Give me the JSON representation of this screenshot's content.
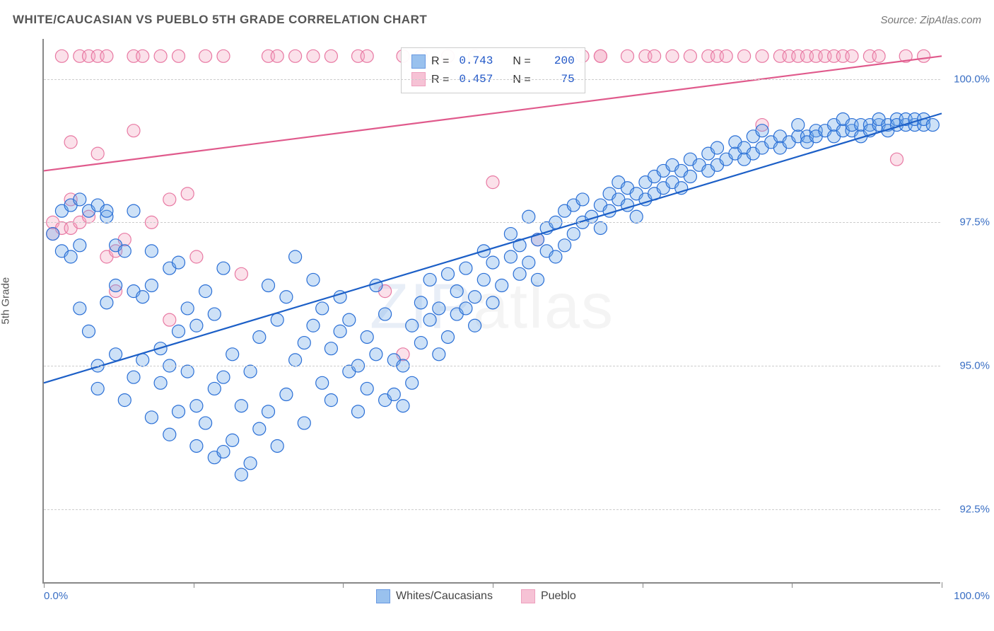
{
  "title": "WHITE/CAUCASIAN VS PUEBLO 5TH GRADE CORRELATION CHART",
  "source": "Source: ZipAtlas.com",
  "ylabel": "5th Grade",
  "watermark_a": "ZIP",
  "watermark_b": "atlas",
  "chart": {
    "type": "scatter",
    "background_color": "#ffffff",
    "grid_color": "#cccccc",
    "axis_color": "#888888",
    "xlim": [
      0,
      100
    ],
    "ylim": [
      91.2,
      100.7
    ],
    "ytick_values": [
      92.5,
      95.0,
      97.5,
      100.0
    ],
    "ytick_labels": [
      "92.5%",
      "95.0%",
      "97.5%",
      "100.0%"
    ],
    "xtick_values": [
      0,
      16.67,
      33.33,
      50,
      66.67,
      83.33,
      100
    ],
    "xtick_label_left": "0.0%",
    "xtick_label_right": "100.0%",
    "marker_radius": 9,
    "marker_stroke_width": 1.2,
    "marker_fill_opacity": 0.35,
    "trend_line_width": 2.2,
    "series": {
      "blue": {
        "label": "Whites/Caucasians",
        "stroke_color": "#2a6fd6",
        "fill_color": "#6fa8e8",
        "line_color": "#1c5fc7",
        "R": "0.743",
        "N": "200",
        "trend_x1": 0,
        "trend_y1": 94.7,
        "trend_x2": 100,
        "trend_y2": 99.4,
        "points": [
          [
            1,
            97.3
          ],
          [
            2,
            97.0
          ],
          [
            2,
            97.7
          ],
          [
            3,
            97.8
          ],
          [
            3,
            96.9
          ],
          [
            4,
            96.0
          ],
          [
            4,
            97.1
          ],
          [
            4,
            97.9
          ],
          [
            5,
            97.7
          ],
          [
            5,
            95.6
          ],
          [
            6,
            97.8
          ],
          [
            6,
            95.0
          ],
          [
            6,
            94.6
          ],
          [
            7,
            97.6
          ],
          [
            7,
            97.7
          ],
          [
            7,
            96.1
          ],
          [
            8,
            96.4
          ],
          [
            8,
            95.2
          ],
          [
            8,
            97.1
          ],
          [
            9,
            94.4
          ],
          [
            9,
            97.0
          ],
          [
            10,
            96.3
          ],
          [
            10,
            94.8
          ],
          [
            10,
            97.7
          ],
          [
            11,
            95.1
          ],
          [
            11,
            96.2
          ],
          [
            12,
            96.4
          ],
          [
            12,
            94.1
          ],
          [
            12,
            97.0
          ],
          [
            13,
            94.7
          ],
          [
            13,
            95.3
          ],
          [
            14,
            95.0
          ],
          [
            14,
            96.7
          ],
          [
            14,
            93.8
          ],
          [
            15,
            95.6
          ],
          [
            15,
            94.2
          ],
          [
            15,
            96.8
          ],
          [
            16,
            94.9
          ],
          [
            16,
            96.0
          ],
          [
            17,
            94.3
          ],
          [
            17,
            95.7
          ],
          [
            17,
            93.6
          ],
          [
            18,
            96.3
          ],
          [
            18,
            94.0
          ],
          [
            19,
            95.9
          ],
          [
            19,
            94.6
          ],
          [
            19,
            93.4
          ],
          [
            20,
            96.7
          ],
          [
            20,
            93.5
          ],
          [
            20,
            94.8
          ],
          [
            21,
            93.7
          ],
          [
            21,
            95.2
          ],
          [
            22,
            94.3
          ],
          [
            22,
            93.1
          ],
          [
            23,
            93.3
          ],
          [
            23,
            94.9
          ],
          [
            24,
            95.5
          ],
          [
            24,
            93.9
          ],
          [
            25,
            94.2
          ],
          [
            25,
            96.4
          ],
          [
            26,
            95.8
          ],
          [
            26,
            93.6
          ],
          [
            27,
            96.2
          ],
          [
            27,
            94.5
          ],
          [
            28,
            96.9
          ],
          [
            28,
            95.1
          ],
          [
            29,
            94.0
          ],
          [
            29,
            95.4
          ],
          [
            30,
            95.7
          ],
          [
            30,
            96.5
          ],
          [
            31,
            94.7
          ],
          [
            31,
            96.0
          ],
          [
            32,
            95.3
          ],
          [
            32,
            94.4
          ],
          [
            33,
            95.6
          ],
          [
            33,
            96.2
          ],
          [
            34,
            94.9
          ],
          [
            34,
            95.8
          ],
          [
            35,
            94.2
          ],
          [
            35,
            95.0
          ],
          [
            36,
            95.5
          ],
          [
            36,
            94.6
          ],
          [
            37,
            96.4
          ],
          [
            37,
            95.2
          ],
          [
            38,
            94.4
          ],
          [
            38,
            95.9
          ],
          [
            39,
            95.1
          ],
          [
            39,
            94.5
          ],
          [
            40,
            94.3
          ],
          [
            40,
            95.0
          ],
          [
            41,
            95.7
          ],
          [
            41,
            94.7
          ],
          [
            42,
            96.1
          ],
          [
            42,
            95.4
          ],
          [
            43,
            96.5
          ],
          [
            43,
            95.8
          ],
          [
            44,
            95.2
          ],
          [
            44,
            96.0
          ],
          [
            45,
            96.6
          ],
          [
            45,
            95.5
          ],
          [
            46,
            96.3
          ],
          [
            46,
            95.9
          ],
          [
            47,
            96.0
          ],
          [
            47,
            96.7
          ],
          [
            48,
            96.2
          ],
          [
            48,
            95.7
          ],
          [
            49,
            96.5
          ],
          [
            49,
            97.0
          ],
          [
            50,
            96.1
          ],
          [
            50,
            96.8
          ],
          [
            51,
            96.4
          ],
          [
            52,
            96.9
          ],
          [
            52,
            97.3
          ],
          [
            53,
            96.6
          ],
          [
            53,
            97.1
          ],
          [
            54,
            96.8
          ],
          [
            54,
            97.6
          ],
          [
            55,
            97.2
          ],
          [
            55,
            96.5
          ],
          [
            56,
            97.0
          ],
          [
            56,
            97.4
          ],
          [
            57,
            96.9
          ],
          [
            57,
            97.5
          ],
          [
            58,
            97.1
          ],
          [
            58,
            97.7
          ],
          [
            59,
            97.8
          ],
          [
            59,
            97.3
          ],
          [
            60,
            97.5
          ],
          [
            60,
            97.9
          ],
          [
            61,
            97.6
          ],
          [
            62,
            97.4
          ],
          [
            62,
            97.8
          ],
          [
            63,
            97.7
          ],
          [
            63,
            98.0
          ],
          [
            64,
            97.9
          ],
          [
            64,
            98.2
          ],
          [
            65,
            97.8
          ],
          [
            65,
            98.1
          ],
          [
            66,
            97.6
          ],
          [
            66,
            98.0
          ],
          [
            67,
            98.2
          ],
          [
            67,
            97.9
          ],
          [
            68,
            98.3
          ],
          [
            68,
            98.0
          ],
          [
            69,
            98.1
          ],
          [
            69,
            98.4
          ],
          [
            70,
            98.2
          ],
          [
            70,
            98.5
          ],
          [
            71,
            98.4
          ],
          [
            71,
            98.1
          ],
          [
            72,
            98.3
          ],
          [
            72,
            98.6
          ],
          [
            73,
            98.5
          ],
          [
            74,
            98.4
          ],
          [
            74,
            98.7
          ],
          [
            75,
            98.5
          ],
          [
            75,
            98.8
          ],
          [
            76,
            98.6
          ],
          [
            77,
            98.7
          ],
          [
            77,
            98.9
          ],
          [
            78,
            98.8
          ],
          [
            78,
            98.6
          ],
          [
            79,
            98.7
          ],
          [
            79,
            99.0
          ],
          [
            80,
            98.8
          ],
          [
            80,
            99.1
          ],
          [
            81,
            98.9
          ],
          [
            82,
            99.0
          ],
          [
            82,
            98.8
          ],
          [
            83,
            98.9
          ],
          [
            84,
            99.0
          ],
          [
            84,
            99.2
          ],
          [
            85,
            99.0
          ],
          [
            85,
            98.9
          ],
          [
            86,
            99.1
          ],
          [
            86,
            99.0
          ],
          [
            87,
            99.1
          ],
          [
            88,
            99.2
          ],
          [
            88,
            99.0
          ],
          [
            89,
            99.1
          ],
          [
            89,
            99.3
          ],
          [
            90,
            99.1
          ],
          [
            90,
            99.2
          ],
          [
            91,
            99.2
          ],
          [
            91,
            99.0
          ],
          [
            92,
            99.2
          ],
          [
            92,
            99.1
          ],
          [
            93,
            99.2
          ],
          [
            93,
            99.3
          ],
          [
            94,
            99.2
          ],
          [
            94,
            99.1
          ],
          [
            95,
            99.3
          ],
          [
            95,
            99.2
          ],
          [
            96,
            99.2
          ],
          [
            96,
            99.3
          ],
          [
            97,
            99.2
          ],
          [
            97,
            99.3
          ],
          [
            98,
            99.2
          ],
          [
            98,
            99.3
          ],
          [
            99,
            99.2
          ]
        ]
      },
      "pink": {
        "label": "Pueblo",
        "stroke_color": "#e879a3",
        "fill_color": "#f3a9c4",
        "line_color": "#e05a8c",
        "R": "0.457",
        "N": "75",
        "trend_x1": 0,
        "trend_y1": 98.4,
        "trend_x2": 100,
        "trend_y2": 100.4,
        "points": [
          [
            1,
            97.3
          ],
          [
            1,
            97.5
          ],
          [
            2,
            97.4
          ],
          [
            2,
            100.4
          ],
          [
            3,
            98.9
          ],
          [
            3,
            97.4
          ],
          [
            3,
            97.9
          ],
          [
            4,
            100.4
          ],
          [
            4,
            97.5
          ],
          [
            5,
            100.4
          ],
          [
            5,
            97.6
          ],
          [
            6,
            100.4
          ],
          [
            6,
            98.7
          ],
          [
            7,
            96.9
          ],
          [
            7,
            100.4
          ],
          [
            8,
            96.3
          ],
          [
            8,
            97.0
          ],
          [
            9,
            97.2
          ],
          [
            10,
            99.1
          ],
          [
            10,
            100.4
          ],
          [
            11,
            100.4
          ],
          [
            12,
            97.5
          ],
          [
            13,
            100.4
          ],
          [
            14,
            97.9
          ],
          [
            14,
            95.8
          ],
          [
            15,
            100.4
          ],
          [
            16,
            98.0
          ],
          [
            17,
            96.9
          ],
          [
            18,
            100.4
          ],
          [
            20,
            100.4
          ],
          [
            22,
            96.6
          ],
          [
            25,
            100.4
          ],
          [
            26,
            100.4
          ],
          [
            28,
            100.4
          ],
          [
            30,
            100.4
          ],
          [
            32,
            100.4
          ],
          [
            35,
            100.4
          ],
          [
            36,
            100.4
          ],
          [
            38,
            96.3
          ],
          [
            40,
            100.4
          ],
          [
            40,
            95.2
          ],
          [
            42,
            100.4
          ],
          [
            45,
            100.4
          ],
          [
            48,
            100.4
          ],
          [
            50,
            98.2
          ],
          [
            55,
            97.2
          ],
          [
            58,
            100.4
          ],
          [
            60,
            100.4
          ],
          [
            62,
            100.4
          ],
          [
            62,
            100.4
          ],
          [
            65,
            100.4
          ],
          [
            67,
            100.4
          ],
          [
            68,
            100.4
          ],
          [
            70,
            100.4
          ],
          [
            72,
            100.4
          ],
          [
            74,
            100.4
          ],
          [
            75,
            100.4
          ],
          [
            76,
            100.4
          ],
          [
            78,
            100.4
          ],
          [
            80,
            100.4
          ],
          [
            80,
            99.2
          ],
          [
            82,
            100.4
          ],
          [
            83,
            100.4
          ],
          [
            84,
            100.4
          ],
          [
            85,
            100.4
          ],
          [
            86,
            100.4
          ],
          [
            87,
            100.4
          ],
          [
            88,
            100.4
          ],
          [
            89,
            100.4
          ],
          [
            90,
            100.4
          ],
          [
            92,
            100.4
          ],
          [
            93,
            100.4
          ],
          [
            95,
            98.6
          ],
          [
            96,
            100.4
          ],
          [
            98,
            100.4
          ]
        ]
      }
    }
  },
  "legend_stats": {
    "r_label": "R =",
    "n_label": "N ="
  }
}
